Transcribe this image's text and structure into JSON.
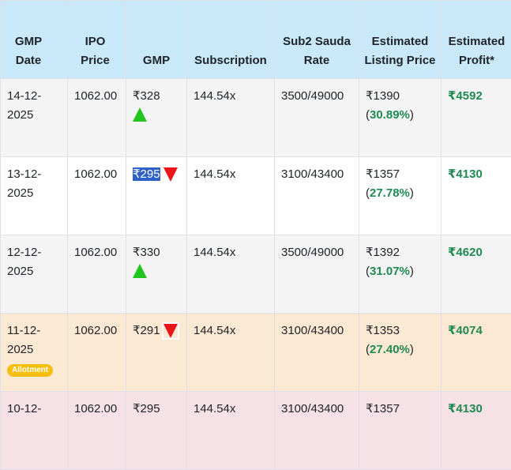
{
  "headers": {
    "gmp_date": "GMP Date",
    "ipo_price": "IPO Price",
    "gmp": "GMP",
    "subscription": "Subscription",
    "sub2": "Sub2 Sauda Rate",
    "est_listing": "Estimated Listing Price",
    "est_profit": "Estimated Profit*"
  },
  "rows": [
    {
      "date": "14-12-2025",
      "ipo_price": "1062.00",
      "gmp": "₹328",
      "trend": "up",
      "subscription": "144.54x",
      "sub2": "3500/49000",
      "listing_price": "₹1390",
      "listing_pct": "30.89%",
      "profit": "₹4592"
    },
    {
      "date": "13-12-2025",
      "ipo_price": "1062.00",
      "gmp": "₹295",
      "trend": "down",
      "subscription": "144.54x",
      "sub2": "3100/43400",
      "listing_price": "₹1357",
      "listing_pct": "27.78%",
      "profit": "₹4130"
    },
    {
      "date": "12-12-2025",
      "ipo_price": "1062.00",
      "gmp": "₹330",
      "trend": "up",
      "subscription": "144.54x",
      "sub2": "3500/49000",
      "listing_price": "₹1392",
      "listing_pct": "31.07%",
      "profit": "₹4620"
    },
    {
      "date": "11-12-2025",
      "badge": "Allotment",
      "ipo_price": "1062.00",
      "gmp": "₹291",
      "trend": "down",
      "subscription": "144.54x",
      "sub2": "3100/43400",
      "listing_price": "₹1353",
      "listing_pct": "27.40%",
      "profit": "₹4074"
    },
    {
      "date": "10-12-",
      "ipo_price": "1062.00",
      "gmp": "₹295",
      "subscription": "144.54x",
      "sub2": "3100/43400",
      "listing_price": "₹1357",
      "profit": "₹4130"
    }
  ],
  "colors": {
    "header_bg": "#c9e9fb",
    "profit_green": "#1f8a52",
    "arrow_up": "#22c51c",
    "arrow_down": "#e8161b",
    "badge_bg": "#f6bf0e",
    "selection_bg": "#2e62c9"
  }
}
